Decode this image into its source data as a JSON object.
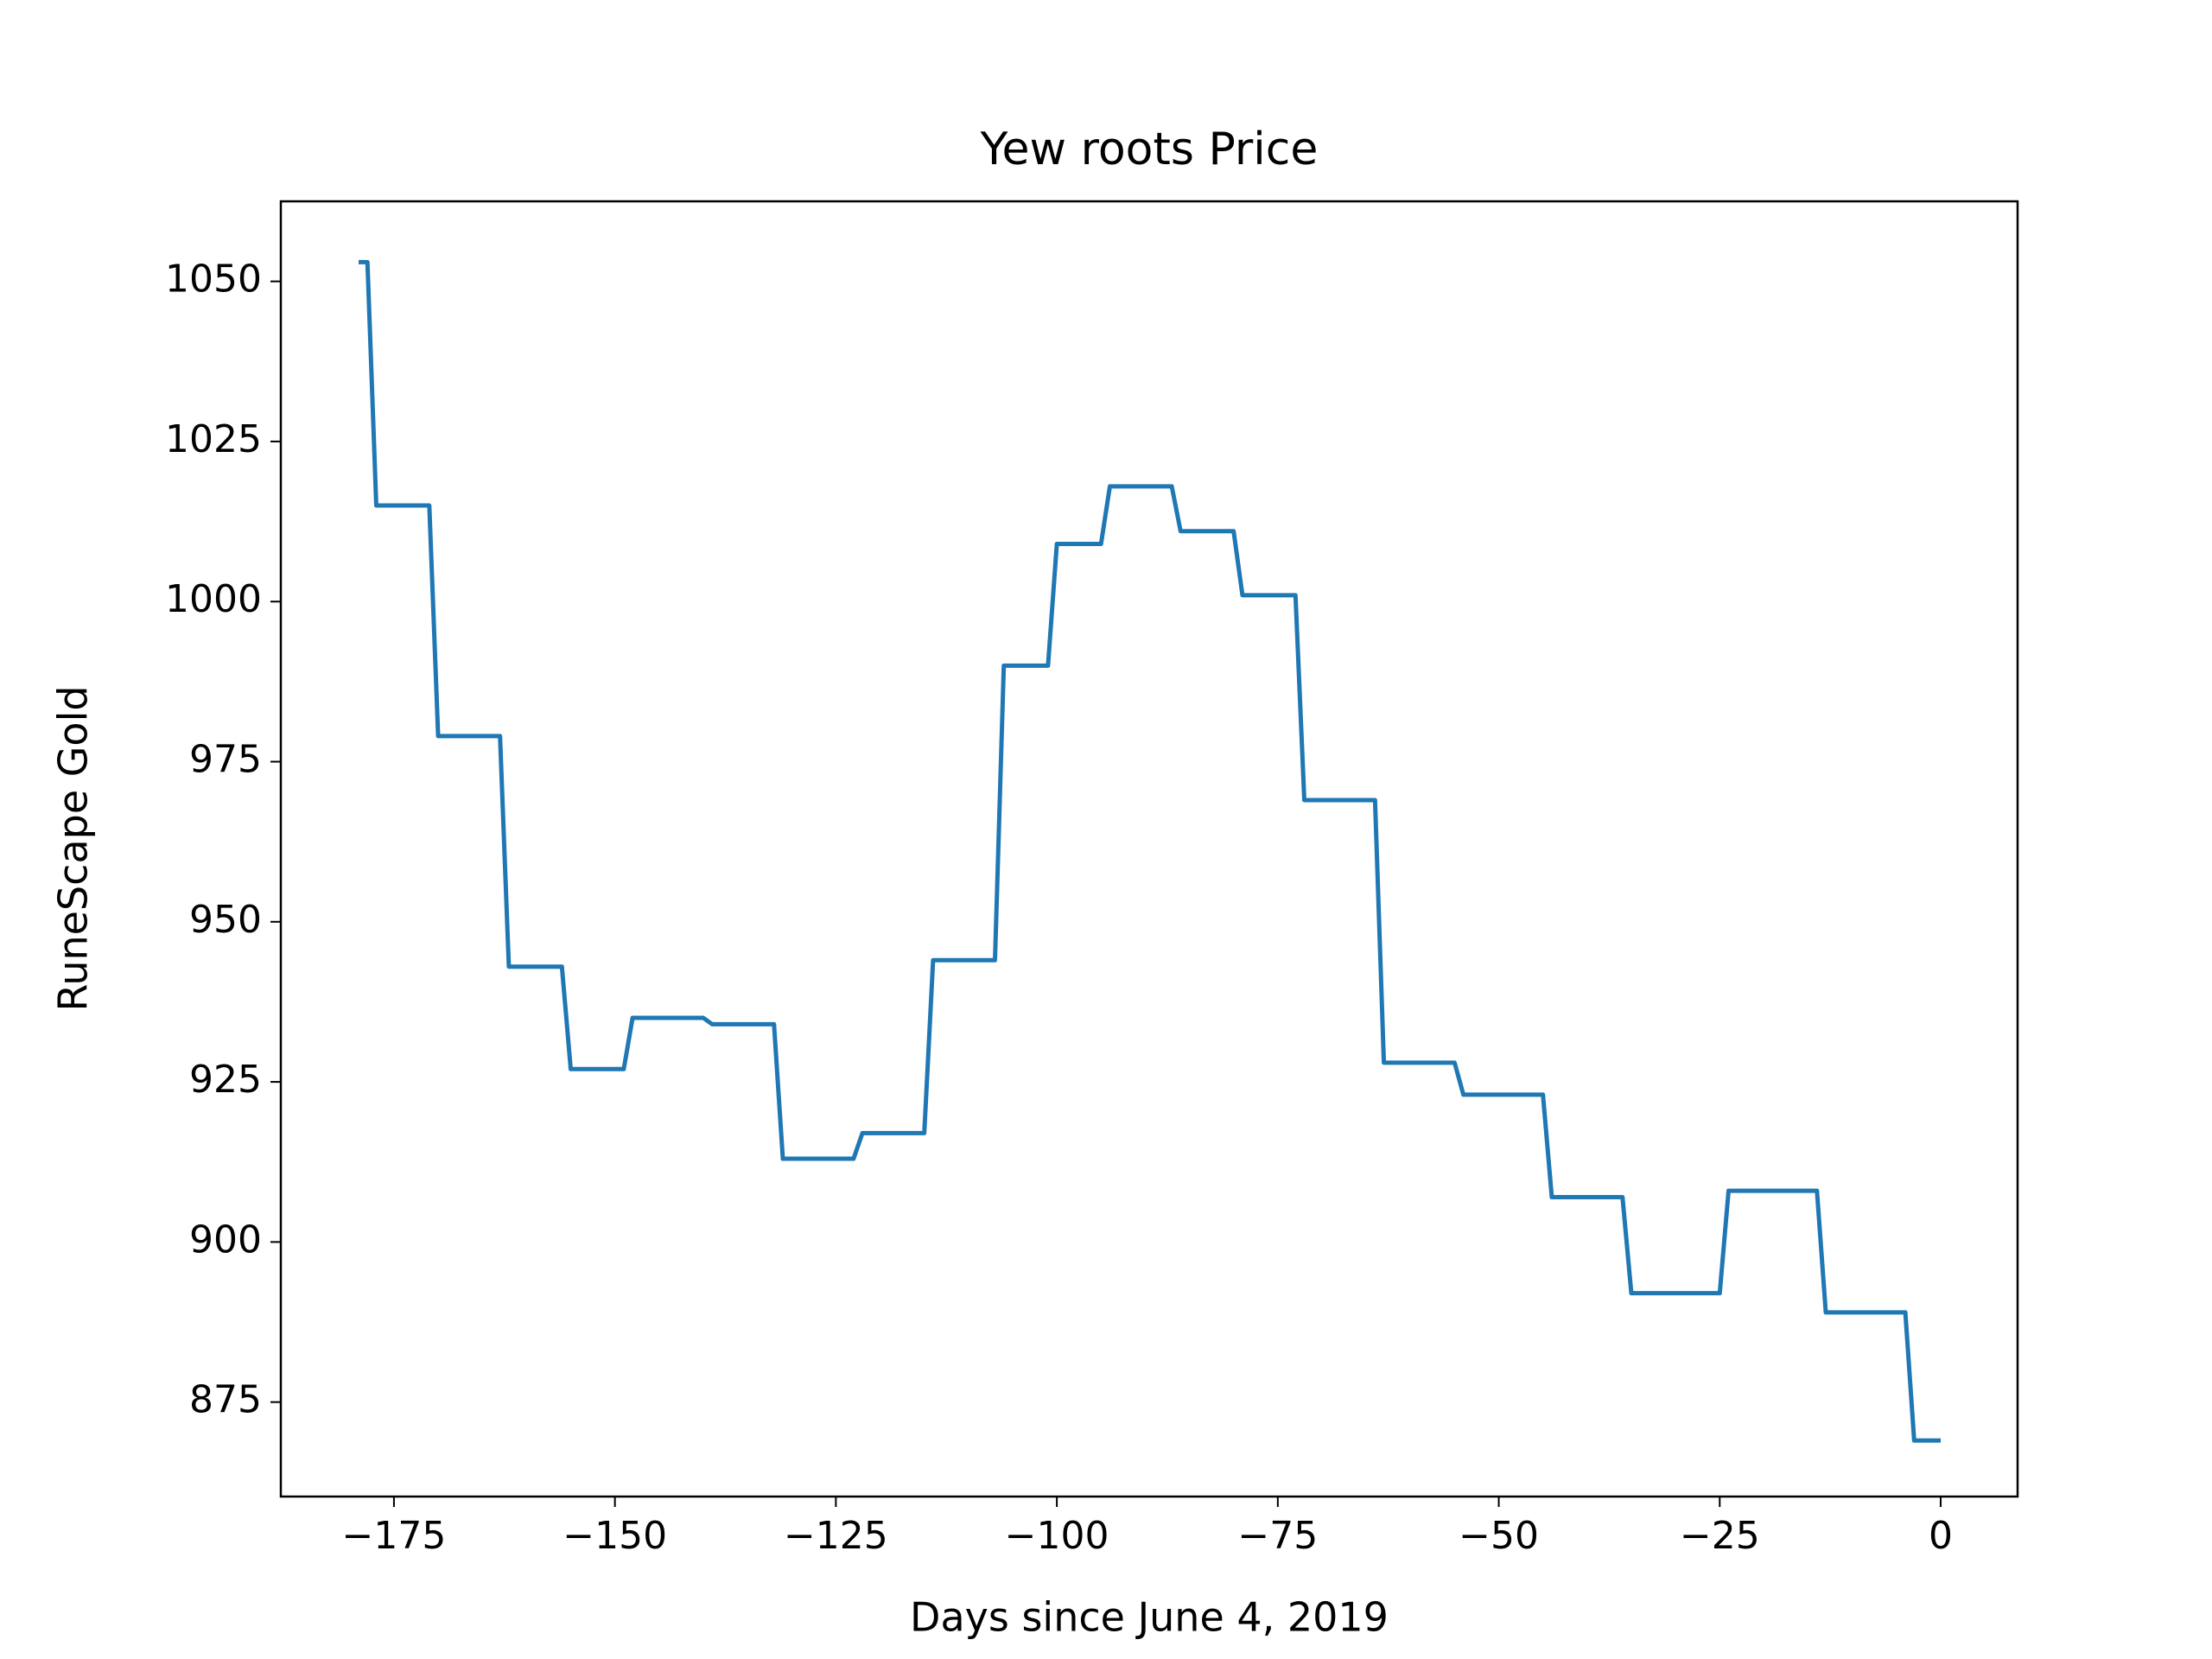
{
  "chart_data": {
    "type": "line",
    "title": "Yew roots Price",
    "xlabel": "Days since June 4, 2019",
    "ylabel": "RuneScape Gold",
    "x": [
      -179,
      -178,
      -177,
      -171,
      -170,
      -163,
      -162,
      -156,
      -155,
      -149,
      -148,
      -140,
      -139,
      -132,
      -131,
      -123,
      -122,
      -115,
      -114,
      -107,
      -106,
      -101,
      -100,
      -95,
      -94,
      -87,
      -86,
      -80,
      -79,
      -73,
      -72,
      -64,
      -63,
      -55,
      -54,
      -45,
      -44,
      -36,
      -35,
      -25,
      -24,
      -14,
      -13,
      -4,
      -3,
      0
    ],
    "series": [
      {
        "name": "Yew roots",
        "color": "#1f77b4",
        "values": [
          1053,
          1053,
          1015,
          1015,
          979,
          979,
          943,
          943,
          927,
          927,
          935,
          935,
          934,
          934,
          913,
          913,
          917,
          917,
          944,
          944,
          990,
          990,
          1009,
          1009,
          1018,
          1018,
          1011,
          1011,
          1001,
          1001,
          969,
          969,
          928,
          928,
          923,
          923,
          907,
          907,
          892,
          892,
          908,
          908,
          889,
          889,
          869,
          869
        ]
      }
    ],
    "xlim": [
      -187.8,
      8.7
    ],
    "xticks": [
      {
        "value": -175,
        "label": "−175"
      },
      {
        "value": -150,
        "label": "−150"
      },
      {
        "value": -125,
        "label": "−125"
      },
      {
        "value": -100,
        "label": "−100"
      },
      {
        "value": -75,
        "label": "−75"
      },
      {
        "value": -50,
        "label": "−50"
      },
      {
        "value": -25,
        "label": "−25"
      },
      0
    ],
    "ylim": [
      860.25,
      1062.5
    ],
    "yticks": [
      875,
      900,
      925,
      950,
      975,
      1000,
      1025,
      1050
    ]
  }
}
